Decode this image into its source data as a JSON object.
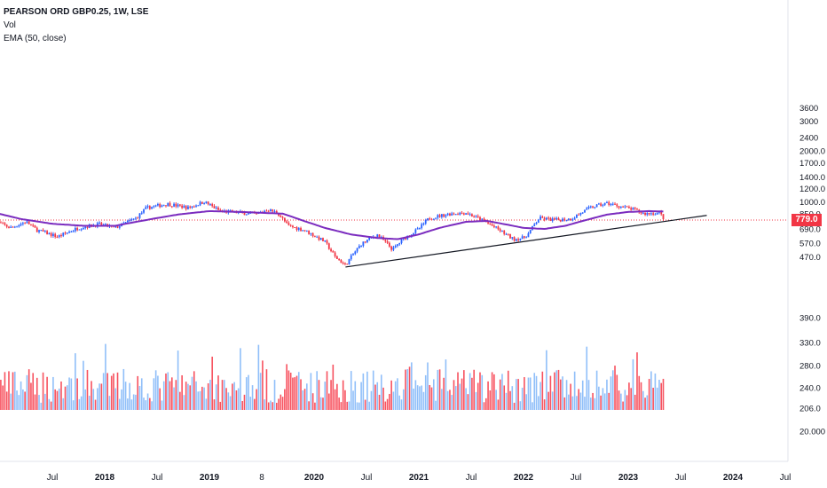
{
  "legend": {
    "symbol": "PEARSON ORD GBP0.25, 1W, LSE",
    "vol": "Vol",
    "ema": "EMA (50, close)"
  },
  "price_tag": "779.0",
  "colors": {
    "up": "#2962ff",
    "down": "#f23645",
    "ema": "#7b2cbf",
    "trend": "#131722",
    "vol_up": "#90bff9",
    "vol_down": "#f7525f"
  },
  "chart_data": {
    "type": "candlestick",
    "timeframe": "1W",
    "y_scale": "log",
    "y_ticks": [
      "3600",
      "3000",
      "2400",
      "2000.0",
      "1700.0",
      "1400.0",
      "1200.0",
      "1000.0",
      "850.0",
      "690.0",
      "570.0",
      "470.0",
      "390.0",
      "330.0",
      "280.0",
      "240.0",
      "206.0",
      "20.000"
    ],
    "y_tick_values": [
      3600,
      3000,
      2400,
      2000,
      1700,
      1400,
      1200,
      1000,
      850,
      690,
      570,
      470,
      390,
      330,
      280,
      240,
      206,
      20
    ],
    "x_ticks": [
      "Jul",
      "2018",
      "Jul",
      "2019",
      "8",
      "2020",
      "Jul",
      "2021",
      "Jul",
      "2022",
      "Jul",
      "2023",
      "Jul",
      "2024",
      "Jul"
    ],
    "x_tick_dates": [
      2017.5,
      2018.0,
      2018.5,
      2019.0,
      2019.5,
      2020.0,
      2020.5,
      2021.0,
      2021.5,
      2022.0,
      2022.5,
      2023.0,
      2023.5,
      2024.0,
      2024.5
    ],
    "last_price": 779.0,
    "price_keypoints": [
      [
        2016.95,
        765
      ],
      [
        2017.1,
        700
      ],
      [
        2017.25,
        760
      ],
      [
        2017.35,
        680
      ],
      [
        2017.55,
        620
      ],
      [
        2017.75,
        700
      ],
      [
        2017.95,
        735
      ],
      [
        2018.1,
        700
      ],
      [
        2018.3,
        800
      ],
      [
        2018.4,
        920
      ],
      [
        2018.6,
        970
      ],
      [
        2018.8,
        920
      ],
      [
        2018.95,
        1000
      ],
      [
        2019.1,
        880
      ],
      [
        2019.3,
        860
      ],
      [
        2019.45,
        840
      ],
      [
        2019.55,
        900
      ],
      [
        2019.65,
        860
      ],
      [
        2019.75,
        720
      ],
      [
        2019.9,
        680
      ],
      [
        2020.1,
        580
      ],
      [
        2020.2,
        470
      ],
      [
        2020.3,
        420
      ],
      [
        2020.45,
        560
      ],
      [
        2020.6,
        640
      ],
      [
        2020.75,
        520
      ],
      [
        2020.85,
        600
      ],
      [
        2021.0,
        690
      ],
      [
        2021.1,
        800
      ],
      [
        2021.3,
        850
      ],
      [
        2021.45,
        860
      ],
      [
        2021.6,
        780
      ],
      [
        2021.8,
        660
      ],
      [
        2021.9,
        600
      ],
      [
        2022.0,
        610
      ],
      [
        2022.05,
        650
      ],
      [
        2022.15,
        800
      ],
      [
        2022.3,
        780
      ],
      [
        2022.45,
        790
      ],
      [
        2022.65,
        930
      ],
      [
        2022.8,
        980
      ],
      [
        2022.95,
        930
      ],
      [
        2023.05,
        900
      ],
      [
        2023.15,
        850
      ],
      [
        2023.3,
        860
      ],
      [
        2023.35,
        779
      ]
    ],
    "ema_keypoints": [
      [
        2016.95,
        860
      ],
      [
        2017.2,
        790
      ],
      [
        2017.5,
        740
      ],
      [
        2017.8,
        720
      ],
      [
        2018.1,
        720
      ],
      [
        2018.4,
        780
      ],
      [
        2018.7,
        840
      ],
      [
        2019.0,
        880
      ],
      [
        2019.3,
        870
      ],
      [
        2019.5,
        860
      ],
      [
        2019.7,
        850
      ],
      [
        2019.9,
        770
      ],
      [
        2020.1,
        700
      ],
      [
        2020.35,
        640
      ],
      [
        2020.6,
        610
      ],
      [
        2020.8,
        600
      ],
      [
        2021.0,
        640
      ],
      [
        2021.2,
        700
      ],
      [
        2021.45,
        760
      ],
      [
        2021.65,
        770
      ],
      [
        2021.85,
        730
      ],
      [
        2022.0,
        700
      ],
      [
        2022.2,
        690
      ],
      [
        2022.4,
        720
      ],
      [
        2022.6,
        780
      ],
      [
        2022.8,
        840
      ],
      [
        2023.0,
        870
      ],
      [
        2023.2,
        880
      ],
      [
        2023.35,
        875
      ]
    ],
    "trendline": [
      [
        2020.3,
        410
      ],
      [
        2023.75,
        830
      ]
    ],
    "volume_axis_base": 20
  }
}
